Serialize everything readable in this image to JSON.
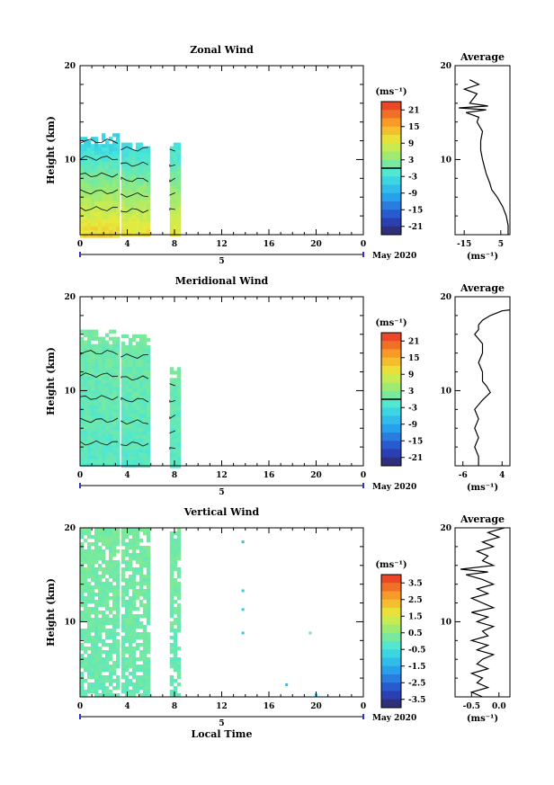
{
  "chart_data": [
    {
      "type": "heatmap",
      "title": "Zonal Wind",
      "ylabel": "Height (km)",
      "xlim": [
        0,
        24
      ],
      "ylim": [
        2,
        20
      ],
      "x_ticks": [
        "0",
        "4",
        "8",
        "12",
        "16",
        "20",
        "0"
      ],
      "y_ticks": [
        "20",
        "10"
      ],
      "day_label": "5",
      "month_label": "May 2020",
      "colorbar": {
        "unit": "(ms⁻¹)",
        "ticks": [
          "21",
          "15",
          "9",
          "3",
          "-3",
          "-9",
          "-15",
          "-21"
        ],
        "min": -24,
        "max": 24
      },
      "data_blocks": [
        {
          "t0": 0.0,
          "t1": 3.2,
          "h0": 2.0,
          "h1": 12.8,
          "value_low": 12,
          "value_high": -6
        },
        {
          "t0": 3.5,
          "t1": 5.8,
          "h0": 2.0,
          "h1": 11.8,
          "value_low": 11,
          "value_high": -4
        },
        {
          "t0": 7.6,
          "t1": 8.5,
          "h0": 2.0,
          "h1": 11.8,
          "value_low": 10,
          "value_high": -3
        }
      ],
      "profile": {
        "title": "Average",
        "xlabel": "(ms⁻¹)",
        "x_ticks": [
          "-15",
          "5"
        ],
        "y_ticks": [
          "20",
          "10"
        ],
        "xlim": [
          -20,
          10
        ],
        "ylim": [
          2,
          20
        ],
        "points": [
          [
            9,
            2
          ],
          [
            9,
            3
          ],
          [
            8,
            4
          ],
          [
            6,
            5
          ],
          [
            3,
            6
          ],
          [
            0,
            6.8
          ],
          [
            -1,
            7.5
          ],
          [
            -3,
            8.5
          ],
          [
            -5,
            10
          ],
          [
            -6,
            11
          ],
          [
            -6,
            12
          ],
          [
            -5,
            13
          ],
          [
            -8,
            14
          ],
          [
            -7,
            14.5
          ],
          [
            -14,
            15
          ],
          [
            -3,
            15.3
          ],
          [
            -18,
            15.5
          ],
          [
            -2,
            15.7
          ],
          [
            -12,
            16
          ],
          [
            -8,
            17
          ],
          [
            -15,
            17.5
          ],
          [
            -7,
            18
          ],
          [
            -12,
            18.5
          ]
        ]
      }
    },
    {
      "type": "heatmap",
      "title": "Meridional Wind",
      "ylabel": "Height (km)",
      "xlim": [
        0,
        24
      ],
      "ylim": [
        2,
        20
      ],
      "x_ticks": [
        "0",
        "4",
        "8",
        "12",
        "16",
        "20",
        "0"
      ],
      "y_ticks": [
        "20",
        "10"
      ],
      "day_label": "5",
      "month_label": "May 2020",
      "colorbar": {
        "unit": "(ms⁻¹)",
        "ticks": [
          "21",
          "15",
          "9",
          "3",
          "-3",
          "-9",
          "-15",
          "-21"
        ],
        "min": -24,
        "max": 24
      },
      "data_blocks": [
        {
          "t0": 0.0,
          "t1": 3.2,
          "h0": 2.0,
          "h1": 16.5,
          "value_low": -1,
          "value_high": 1
        },
        {
          "t0": 3.5,
          "t1": 5.8,
          "h0": 2.0,
          "h1": 16.0,
          "value_low": -1,
          "value_high": 1
        },
        {
          "t0": 7.6,
          "t1": 8.5,
          "h0": 2.0,
          "h1": 12.5,
          "value_low": -1,
          "value_high": 1
        }
      ],
      "profile": {
        "title": "Average",
        "xlabel": "(ms⁻¹)",
        "x_ticks": [
          "-6",
          "4"
        ],
        "y_ticks": [
          "20",
          "10"
        ],
        "xlim": [
          -8,
          6
        ],
        "ylim": [
          2,
          20
        ],
        "points": [
          [
            -2,
            2
          ],
          [
            -2,
            3
          ],
          [
            -3,
            4
          ],
          [
            -2,
            5
          ],
          [
            -3,
            6
          ],
          [
            -2,
            7
          ],
          [
            -3,
            8
          ],
          [
            -1,
            9
          ],
          [
            1,
            9.8
          ],
          [
            0,
            10.5
          ],
          [
            -1,
            11
          ],
          [
            -1,
            12
          ],
          [
            -2,
            13
          ],
          [
            -1,
            14
          ],
          [
            -1,
            15
          ],
          [
            -3,
            16
          ],
          [
            -2,
            16.5
          ],
          [
            -2,
            17
          ],
          [
            -1,
            17.5
          ],
          [
            1,
            18
          ],
          [
            4,
            18.5
          ],
          [
            6,
            18.6
          ]
        ]
      }
    },
    {
      "type": "heatmap",
      "title": "Vertical Wind",
      "ylabel": "Height (km)",
      "xlabel": "Local Time",
      "xlim": [
        0,
        24
      ],
      "ylim": [
        2,
        20
      ],
      "x_ticks": [
        "0",
        "4",
        "8",
        "12",
        "16",
        "20",
        "0"
      ],
      "y_ticks": [
        "20",
        "10"
      ],
      "day_label": "5",
      "month_label": "May 2020",
      "colorbar": {
        "unit": "(ms⁻¹)",
        "ticks": [
          "3.5",
          "2.5",
          "1.5",
          "0.5",
          "-0.5",
          "-1.5",
          "-2.5",
          "-3.5"
        ],
        "min": -4,
        "max": 4
      },
      "data_blocks": [
        {
          "t0": 0.0,
          "t1": 3.2,
          "h0": 2.0,
          "h1": 20.0,
          "value_low": 0.0,
          "value_high": 0.2
        },
        {
          "t0": 3.5,
          "t1": 5.8,
          "h0": 2.0,
          "h1": 20.0,
          "value_low": 0.0,
          "value_high": 0.2
        },
        {
          "t0": 7.6,
          "t1": 8.5,
          "h0": 2.0,
          "h1": 20.0,
          "value_low": 0.0,
          "value_high": 0.2
        }
      ],
      "scattered_points": [
        {
          "t": 13.8,
          "h": 18.5,
          "v": -1.2
        },
        {
          "t": 13.8,
          "h": 13.3,
          "v": -1.0
        },
        {
          "t": 13.8,
          "h": 11.3,
          "v": -1.0
        },
        {
          "t": 13.8,
          "h": 8.8,
          "v": -1.0
        },
        {
          "t": 19.5,
          "h": 8.8,
          "v": 0.2
        },
        {
          "t": 17.5,
          "h": 3.3,
          "v": -1.2
        },
        {
          "t": 20.0,
          "h": 2.2,
          "v": -1.2
        }
      ],
      "profile": {
        "title": "Average",
        "xlabel": "(ms⁻¹)",
        "x_ticks": [
          "-0.5",
          "0.0"
        ],
        "y_ticks": [
          "20",
          "10"
        ],
        "xlim": [
          -0.8,
          0.2
        ],
        "ylim": [
          2,
          20
        ],
        "points": [
          [
            -0.3,
            2
          ],
          [
            -0.5,
            2.5
          ],
          [
            -0.2,
            3
          ],
          [
            -0.4,
            3.5
          ],
          [
            -0.3,
            4
          ],
          [
            -0.5,
            4.5
          ],
          [
            -0.2,
            5
          ],
          [
            -0.4,
            5.5
          ],
          [
            -0.3,
            6
          ],
          [
            -0.1,
            6.5
          ],
          [
            -0.4,
            7
          ],
          [
            -0.2,
            7.5
          ],
          [
            -0.5,
            8
          ],
          [
            -0.2,
            8.5
          ],
          [
            -0.3,
            9
          ],
          [
            -0.1,
            9.5
          ],
          [
            -0.4,
            10
          ],
          [
            -0.2,
            10.5
          ],
          [
            -0.5,
            11
          ],
          [
            -0.1,
            11.5
          ],
          [
            -0.3,
            12
          ],
          [
            -0.5,
            12.5
          ],
          [
            -0.2,
            13
          ],
          [
            -0.4,
            13.5
          ],
          [
            -0.1,
            14
          ],
          [
            -0.3,
            14.5
          ],
          [
            -0.6,
            15
          ],
          [
            -0.2,
            15.3
          ],
          [
            -0.7,
            15.6
          ],
          [
            -0.1,
            16
          ],
          [
            -0.3,
            16.5
          ],
          [
            -0.2,
            17
          ],
          [
            -0.4,
            17.5
          ],
          [
            -0.1,
            18
          ],
          [
            -0.3,
            18.5
          ],
          [
            0.0,
            19
          ],
          [
            -0.2,
            19.5
          ],
          [
            0.1,
            20
          ]
        ]
      }
    }
  ]
}
